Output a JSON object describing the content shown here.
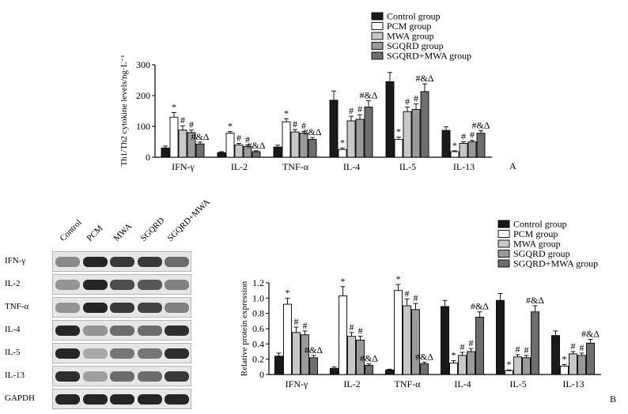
{
  "chart_data": [
    {
      "type": "bar",
      "panel": "A",
      "ylabel": "Th1/Th2 cytokine levels/ng·L⁻¹",
      "ylim": [
        0,
        300
      ],
      "yticks": [
        "0",
        "100",
        "200",
        "300"
      ],
      "categories": [
        "IFN-γ",
        "IL-2",
        "TNF-α",
        "IL-4",
        "IL-5",
        "IL-13"
      ],
      "series": [
        {
          "name": "Control group",
          "color": "#1a1a1a",
          "values": [
            30,
            15,
            33,
            185,
            245,
            87
          ],
          "errors": [
            6,
            3,
            6,
            30,
            30,
            12
          ]
        },
        {
          "name": "PCM group",
          "color": "#ffffff",
          "values": [
            130,
            78,
            115,
            25,
            58,
            18
          ],
          "errors": [
            15,
            5,
            10,
            5,
            7,
            3
          ]
        },
        {
          "name": "MWA group",
          "color": "#c8c8c8",
          "values": [
            88,
            40,
            82,
            118,
            148,
            45
          ],
          "errors": [
            14,
            5,
            8,
            15,
            15,
            5
          ]
        },
        {
          "name": "SGQRD group",
          "color": "#9a9a9a",
          "values": [
            80,
            35,
            78,
            123,
            155,
            50
          ],
          "errors": [
            8,
            5,
            6,
            15,
            18,
            5
          ]
        },
        {
          "name": "SGQRD+MWA group",
          "color": "#6e6e6e",
          "values": [
            43,
            18,
            58,
            163,
            213,
            78
          ],
          "errors": [
            6,
            3,
            6,
            20,
            25,
            8
          ]
        }
      ],
      "annotations": [
        [
          "",
          "*",
          "#",
          "#",
          "#&Δ"
        ],
        [
          "",
          "*",
          "#",
          "#",
          "#&Δ"
        ],
        [
          "",
          "*",
          "#",
          "#",
          "#&Δ"
        ],
        [
          "",
          "*",
          "#",
          "#",
          "#&Δ"
        ],
        [
          "",
          "*",
          "#",
          "#",
          "#&Δ"
        ],
        [
          "",
          "*",
          "#",
          "#",
          "#&Δ"
        ]
      ]
    },
    {
      "type": "bar",
      "panel": "B",
      "ylabel": "Relative protein expression",
      "ylim": [
        0,
        1.2
      ],
      "yticks": [
        "0",
        "0.2",
        "0.4",
        "0.6",
        "0.8",
        "1.0",
        "1.2"
      ],
      "categories": [
        "IFN-γ",
        "IL-2",
        "TNF-α",
        "IL-4",
        "IL-5",
        "IL-13"
      ],
      "series": [
        {
          "name": "Control group",
          "color": "#1a1a1a",
          "values": [
            0.24,
            0.08,
            0.06,
            0.89,
            0.97,
            0.51
          ],
          "errors": [
            0.04,
            0.02,
            0.01,
            0.08,
            0.09,
            0.06
          ]
        },
        {
          "name": "PCM group",
          "color": "#ffffff",
          "values": [
            0.92,
            1.03,
            1.1,
            0.15,
            0.05,
            0.11
          ],
          "errors": [
            0.08,
            0.12,
            0.08,
            0.03,
            0.01,
            0.02
          ]
        },
        {
          "name": "MWA group",
          "color": "#c8c8c8",
          "values": [
            0.55,
            0.5,
            0.9,
            0.25,
            0.23,
            0.27
          ],
          "errors": [
            0.07,
            0.05,
            0.09,
            0.04,
            0.03,
            0.03
          ]
        },
        {
          "name": "SGQRD group",
          "color": "#9a9a9a",
          "values": [
            0.52,
            0.45,
            0.85,
            0.3,
            0.22,
            0.25
          ],
          "errors": [
            0.05,
            0.05,
            0.08,
            0.04,
            0.03,
            0.03
          ]
        },
        {
          "name": "SGQRD+MWA group",
          "color": "#6e6e6e",
          "values": [
            0.22,
            0.12,
            0.14,
            0.75,
            0.82,
            0.41
          ],
          "errors": [
            0.03,
            0.02,
            0.02,
            0.07,
            0.08,
            0.05
          ]
        }
      ],
      "annotations": [
        [
          "",
          "*",
          "#",
          "#",
          "#&Δ"
        ],
        [
          "",
          "*",
          "#",
          "#",
          "#&Δ"
        ],
        [
          "",
          "*",
          "#",
          "#",
          "#&Δ"
        ],
        [
          "",
          "*",
          "#",
          "#",
          "#&Δ"
        ],
        [
          "",
          "*",
          "#",
          "#",
          "#&Δ"
        ],
        [
          "",
          "*",
          "#",
          "#",
          "#&Δ"
        ]
      ]
    }
  ],
  "blot": {
    "lanes": [
      "Control",
      "PCM",
      "MWA",
      "SGQRD",
      "SGQRD+MWA"
    ],
    "rows": [
      {
        "name": "IFN-γ",
        "intensity": [
          0.45,
          0.95,
          0.85,
          0.85,
          0.6
        ]
      },
      {
        "name": "IL-2",
        "intensity": [
          0.4,
          0.95,
          0.75,
          0.7,
          0.5
        ]
      },
      {
        "name": "TNF-α",
        "intensity": [
          0.4,
          0.95,
          0.85,
          0.8,
          0.5
        ]
      },
      {
        "name": "IL-4",
        "intensity": [
          0.95,
          0.4,
          0.6,
          0.6,
          0.9
        ]
      },
      {
        "name": "IL-5",
        "intensity": [
          0.95,
          0.3,
          0.55,
          0.55,
          0.9
        ]
      },
      {
        "name": "IL-13",
        "intensity": [
          0.9,
          0.35,
          0.6,
          0.6,
          0.85
        ]
      },
      {
        "name": "GAPDH",
        "intensity": [
          0.95,
          0.95,
          0.95,
          0.95,
          0.95
        ]
      }
    ]
  }
}
